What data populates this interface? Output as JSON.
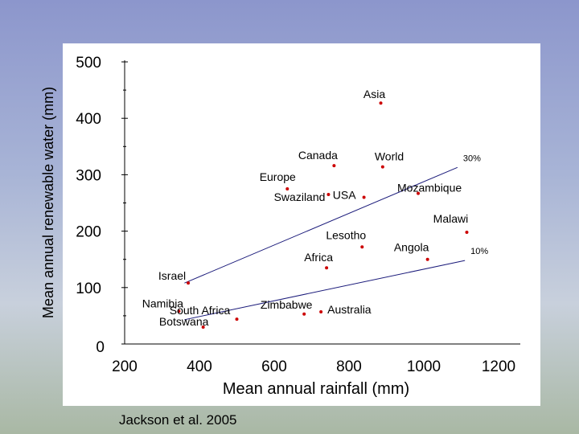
{
  "chart_data": {
    "type": "scatter",
    "xlabel": "Mean annual rainfall (mm)",
    "ylabel": "Mean annual renewable water (mm)",
    "xlim": [
      200,
      1200
    ],
    "ylim": [
      0,
      500
    ],
    "xticks": [
      200,
      400,
      600,
      800,
      1000,
      1200
    ],
    "yticks": [
      0,
      100,
      200,
      300,
      400,
      500
    ],
    "grid": false,
    "points": [
      {
        "label": "Asia",
        "x": 885,
        "y": 427
      },
      {
        "label": "Canada",
        "x": 760,
        "y": 316
      },
      {
        "label": "World",
        "x": 890,
        "y": 314
      },
      {
        "label": "Europe",
        "x": 635,
        "y": 275
      },
      {
        "label": "Swaziland",
        "x": 745,
        "y": 265
      },
      {
        "label": "USA",
        "x": 840,
        "y": 260
      },
      {
        "label": "Mozambique",
        "x": 985,
        "y": 267
      },
      {
        "label": "Malawi",
        "x": 1115,
        "y": 198
      },
      {
        "label": "Lesotho",
        "x": 835,
        "y": 172
      },
      {
        "label": "Angola",
        "x": 1010,
        "y": 150
      },
      {
        "label": "Africa",
        "x": 740,
        "y": 135
      },
      {
        "label": "Israel",
        "x": 370,
        "y": 108
      },
      {
        "label": "Namibia",
        "x": 345,
        "y": 58
      },
      {
        "label": "Zimbabwe",
        "x": 680,
        "y": 53
      },
      {
        "label": "Australia",
        "x": 725,
        "y": 57
      },
      {
        "label": "South Africa",
        "x": 500,
        "y": 44
      },
      {
        "label": "Botswana",
        "x": 410,
        "y": 30
      }
    ],
    "reference_lines": [
      {
        "label": "30%",
        "x1": 360,
        "y1": 108,
        "x2": 1090,
        "y2": 313
      },
      {
        "label": "10%",
        "x1": 360,
        "y1": 43,
        "x2": 1110,
        "y2": 148
      }
    ],
    "source": "Jackson et al. 2005",
    "point_color": "#cc0000",
    "line_color": "#1a1a7a"
  }
}
